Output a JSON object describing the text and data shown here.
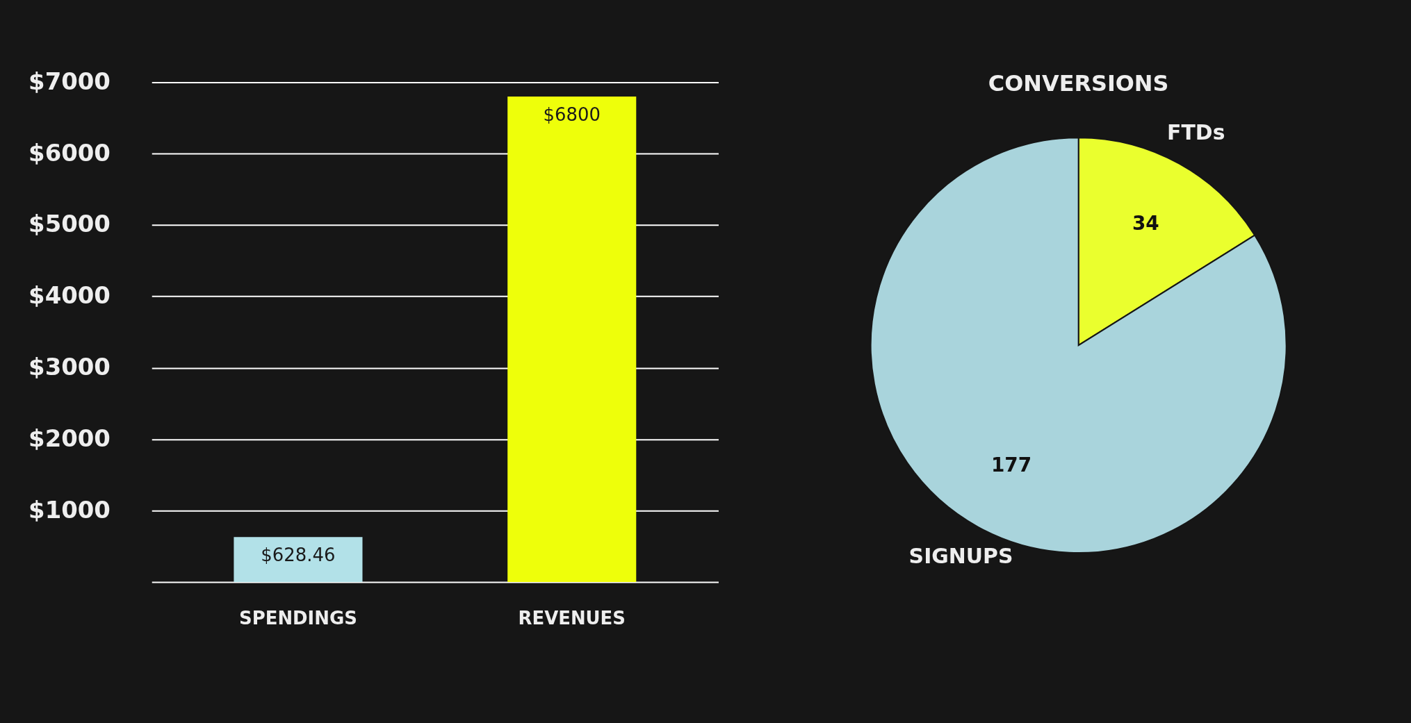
{
  "chart_data": [
    {
      "type": "bar",
      "categories": [
        "SPENDINGS",
        "REVENUES"
      ],
      "values": [
        628.46,
        6800
      ],
      "colors": [
        "#b2e1e8",
        "#eeff0a"
      ],
      "value_labels": [
        "$628.46",
        "$6800"
      ],
      "ylim": [
        0,
        7000
      ],
      "yticks": [
        {
          "value": 0,
          "label": null
        },
        {
          "value": 1000,
          "label": "$1000"
        },
        {
          "value": 2000,
          "label": "$2000"
        },
        {
          "value": 3000,
          "label": "$3000"
        },
        {
          "value": 4000,
          "label": "$4000"
        },
        {
          "value": 5000,
          "label": "$5000"
        },
        {
          "value": 6000,
          "label": "$6000"
        },
        {
          "value": 7000,
          "label": "$7000"
        }
      ],
      "grid": "y"
    },
    {
      "type": "pie",
      "title": "CONVERSIONS",
      "categories": [
        "FTDs",
        "SIGNUPS"
      ],
      "values": [
        34,
        177
      ],
      "colors": [
        "#eaff2e",
        "#a9d4dc"
      ],
      "data_labels": true
    }
  ]
}
